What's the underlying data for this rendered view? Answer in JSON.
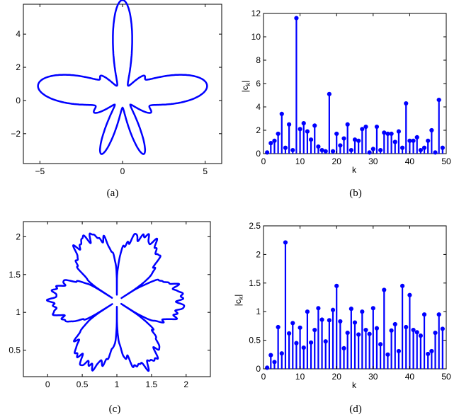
{
  "figure": {
    "panels": [
      {
        "caption": "(a)",
        "type": "curve",
        "xlim": [
          -6,
          6
        ],
        "ylim": [
          -3.8,
          5.8
        ],
        "xticks": [
          -5,
          0,
          5
        ],
        "xtick_labels": [
          "−5",
          "0",
          "5"
        ],
        "yticks": [
          -2,
          0,
          2,
          4
        ],
        "ytick_labels": [
          "−2",
          "0",
          "2",
          "4"
        ]
      },
      {
        "caption": "(b)",
        "type": "stem",
        "xlim": [
          0,
          50
        ],
        "ylim": [
          0,
          12
        ],
        "xticks": [
          0,
          10,
          20,
          30,
          40,
          50
        ],
        "xtick_labels": [
          "0",
          "10",
          "20",
          "30",
          "40",
          "50"
        ],
        "yticks": [
          0,
          2,
          4,
          6,
          8,
          10,
          12
        ],
        "ytick_labels": [
          "0",
          "2",
          "4",
          "6",
          "8",
          "10",
          "12"
        ],
        "xlabel": "k",
        "ylabel_base": "|c",
        "ylabel_sub": "k",
        "ylabel_end": "|"
      },
      {
        "caption": "(c)",
        "type": "curve",
        "xlim": [
          -0.35,
          2.35
        ],
        "ylim": [
          0.15,
          2.2
        ],
        "xticks": [
          0,
          0.5,
          1,
          1.5,
          2
        ],
        "xtick_labels": [
          "0",
          "0.5",
          "1",
          "1.5",
          "2"
        ],
        "yticks": [
          0.5,
          1,
          1.5,
          2
        ],
        "ytick_labels": [
          "0.5",
          "1",
          "1.5",
          "2"
        ]
      },
      {
        "caption": "(d)",
        "type": "stem",
        "xlim": [
          0,
          50
        ],
        "ylim": [
          0,
          2.5
        ],
        "xticks": [
          0,
          10,
          20,
          30,
          40,
          50
        ],
        "xtick_labels": [
          "0",
          "10",
          "20",
          "30",
          "40",
          "50"
        ],
        "yticks": [
          0,
          0.5,
          1,
          1.5,
          2,
          2.5
        ],
        "ytick_labels": [
          "0",
          "0.5",
          "1",
          "1.5",
          "2",
          "2.5"
        ],
        "xlabel": "k",
        "ylabel_base": "|c",
        "ylabel_sub": "k",
        "ylabel_end": "|"
      }
    ]
  },
  "colors": {
    "curve": "#0000ff",
    "stem": "#0000ff",
    "axes": "#000000"
  },
  "chart_data": [
    {
      "type": "line",
      "panel": "a",
      "shape": "closed star-like curve with four petals (left, top, right, bottom)",
      "xlim": [
        -6,
        6
      ],
      "ylim": [
        -3.8,
        5.8
      ]
    },
    {
      "type": "bar",
      "panel": "b",
      "x": [
        1,
        2,
        3,
        4,
        5,
        6,
        7,
        8,
        9,
        10,
        11,
        12,
        13,
        14,
        15,
        16,
        17,
        18,
        19,
        20,
        21,
        22,
        23,
        24,
        25,
        26,
        27,
        28,
        29,
        30,
        31,
        32,
        33,
        34,
        35,
        36,
        37,
        38,
        39,
        40,
        41,
        42,
        43,
        44,
        45,
        46,
        47,
        48,
        49
      ],
      "values": [
        0.1,
        0.9,
        1.1,
        1.7,
        3.4,
        0.5,
        2.5,
        0.3,
        11.6,
        2.1,
        2.6,
        1.9,
        1.2,
        2.4,
        0.6,
        0.3,
        0.2,
        5.1,
        0.2,
        1.7,
        0.7,
        1.3,
        2.5,
        0.3,
        1.2,
        1.1,
        2.1,
        2.3,
        0.1,
        0.4,
        2.3,
        0.3,
        1.8,
        1.7,
        1.7,
        1.0,
        1.9,
        0.5,
        4.3,
        1.1,
        1.1,
        1.4,
        0.3,
        0.5,
        1.1,
        2.0,
        0.1,
        4.6,
        0.5
      ],
      "xlabel": "k",
      "ylabel": "|c_k|",
      "xlim": [
        0,
        50
      ],
      "ylim": [
        0,
        12
      ]
    },
    {
      "type": "line",
      "panel": "c",
      "shape": "six-lobed snowflake curve with jagged lobes around center (1, 1.15)",
      "xlim": [
        -0.35,
        2.35
      ],
      "ylim": [
        0.15,
        2.2
      ]
    },
    {
      "type": "bar",
      "panel": "d",
      "x": [
        1,
        2,
        3,
        4,
        5,
        6,
        7,
        8,
        9,
        10,
        11,
        12,
        13,
        14,
        15,
        16,
        17,
        18,
        19,
        20,
        21,
        22,
        23,
        24,
        25,
        26,
        27,
        28,
        29,
        30,
        31,
        32,
        33,
        34,
        35,
        36,
        37,
        38,
        39,
        40,
        41,
        42,
        43,
        44,
        45,
        46,
        47,
        48,
        49
      ],
      "values": [
        0.02,
        0.24,
        0.12,
        0.73,
        0.27,
        2.21,
        0.62,
        0.8,
        0.45,
        0.72,
        0.37,
        1.0,
        0.46,
        0.68,
        1.06,
        0.86,
        0.48,
        0.85,
        1.03,
        1.45,
        0.83,
        0.36,
        0.63,
        1.05,
        0.81,
        0.6,
        1.0,
        0.68,
        0.61,
        1.06,
        0.71,
        0.43,
        1.38,
        0.25,
        0.67,
        0.78,
        0.31,
        1.45,
        0.73,
        1.29,
        0.68,
        0.64,
        0.58,
        0.95,
        0.26,
        0.31,
        0.63,
        0.95,
        0.7
      ],
      "xlabel": "k",
      "ylabel": "|c_k|",
      "xlim": [
        0,
        50
      ],
      "ylim": [
        0,
        2.5
      ]
    }
  ]
}
